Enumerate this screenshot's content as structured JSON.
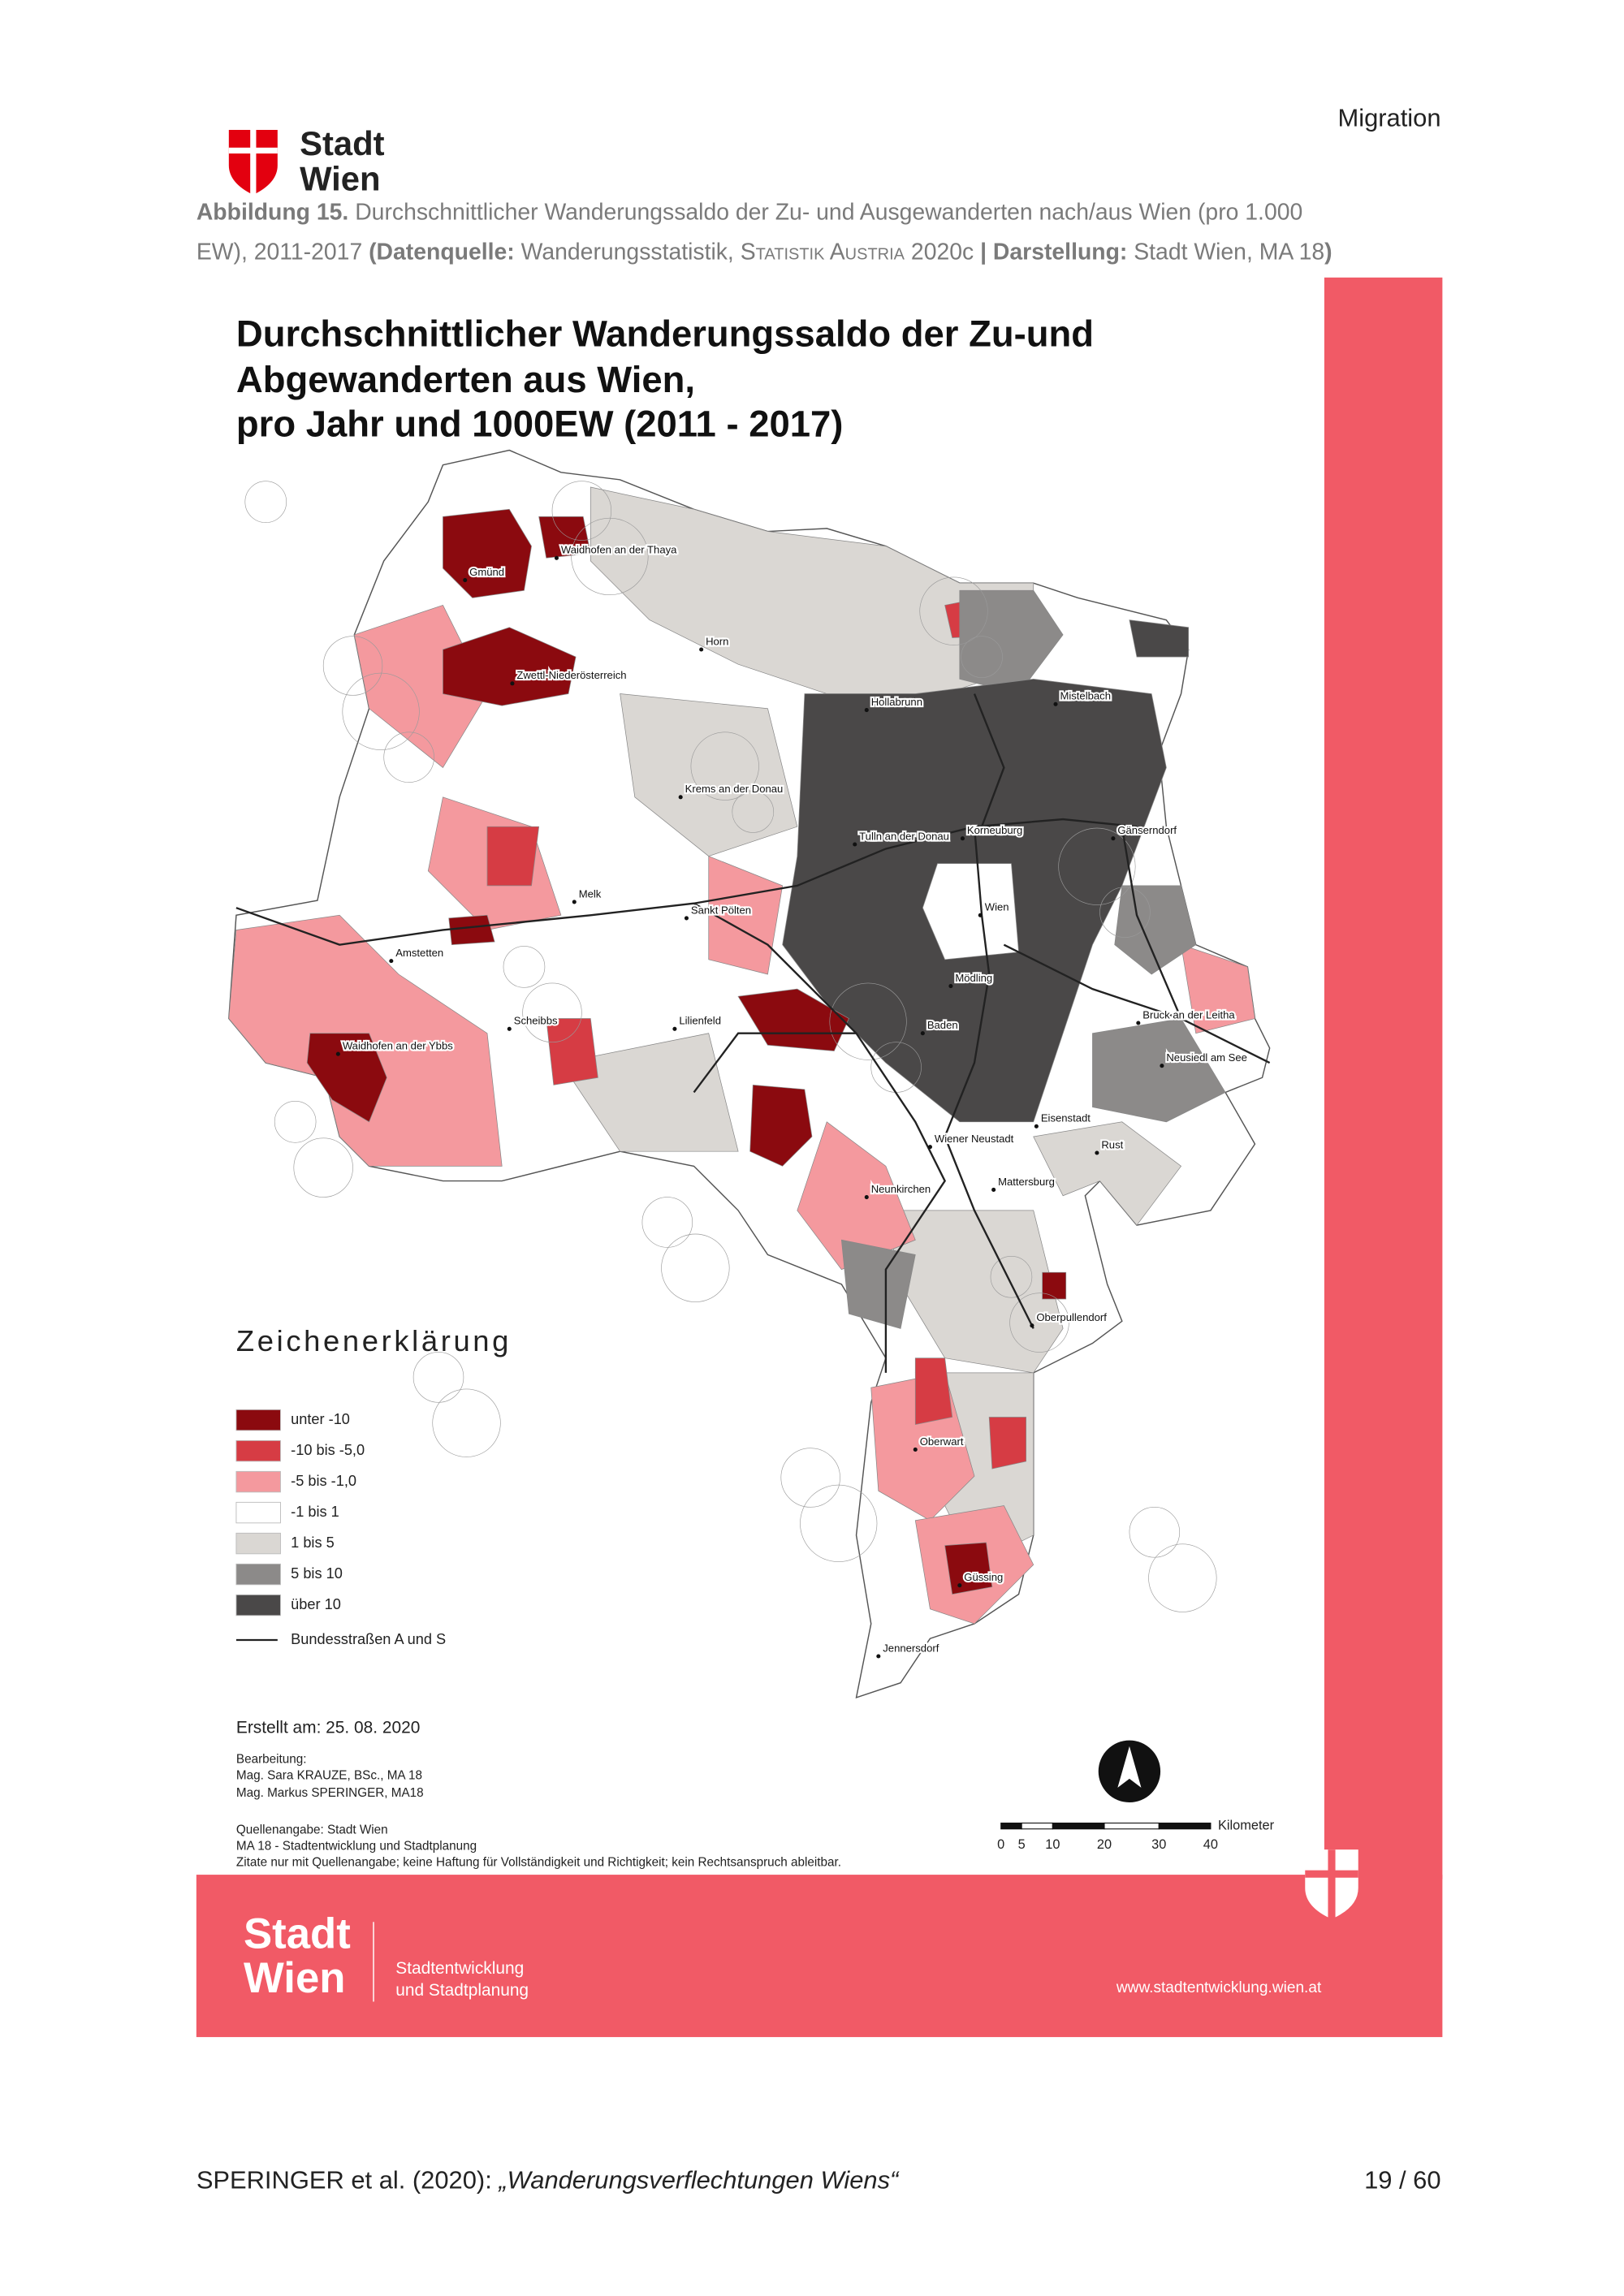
{
  "header": {
    "section": "Migration",
    "logo": [
      "Stadt",
      "Wien"
    ]
  },
  "caption": {
    "label": "Abbildung 15.",
    "text": "Durchschnittlicher Wanderungssaldo der Zu- und Ausgewanderten nach/aus Wien (pro 1.000",
    "text_continued": "EW), 2011-2017",
    "source_label": "(Datenquelle:",
    "source": "Wanderungsstatistik,",
    "source_org": "Statistik Austria",
    "source_year": "2020c",
    "credit_label": "| Darstellung:",
    "credit": "Stadt Wien, MA 18",
    "closing": ")"
  },
  "map": {
    "title": [
      "Durchschnittlicher Wanderungssaldo der Zu-und",
      "Abgewanderten aus Wien,",
      "pro Jahr und 1000EW (2011 - 2017)"
    ],
    "places": [
      "Gmünd",
      "Waidhofen an der Thaya",
      "Horn",
      "Zwettl-Niederösterreich",
      "Hollabrunn",
      "Mistelbach",
      "Krems an der Donau",
      "Tulln an der Donau",
      "Korneuburg",
      "Gänserndorf",
      "Melk",
      "Sankt Pölten",
      "Wien",
      "Amstetten",
      "Mödling",
      "Bruck an der Leitha",
      "Scheibbs",
      "Lilienfeld",
      "Baden",
      "Waidhofen an der Ybbs",
      "Neusiedl am See",
      "Eisenstadt",
      "Wiener Neustadt",
      "Rust",
      "Mattersburg",
      "Neunkirchen",
      "Oberpullendorf",
      "Oberwart",
      "Güssing",
      "Jennersdorf"
    ],
    "legend": {
      "title": "Zeichenerklärung",
      "items": [
        "unter -10",
        "-10 bis -5,0",
        "-5 bis -1,0",
        "-1 bis 1",
        "1 bis 5",
        "5 bis 10",
        "über 10"
      ],
      "roads": "Bundesstraßen A und S"
    },
    "created": "Erstellt am: 25. 08. 2020",
    "editing": [
      "Bearbeitung:",
      "Mag. Sara KRAUZE, BSc., MA 18",
      "Mag. Markus SPERINGER, MA18"
    ],
    "sources": [
      "Quellenangabe: Stadt Wien",
      "MA 18 - Stadtentwicklung und Stadtplanung",
      "Zitate nur mit Quellenangabe; keine Haftung für Vollständigkeit und Richtigkeit; kein Rechtsanspruch ableitbar."
    ],
    "scale": {
      "unit": "Kilometer",
      "labels": [
        "0",
        "5",
        "10",
        "20",
        "30",
        "40"
      ]
    }
  },
  "banner": {
    "logo": [
      "Stadt",
      "Wien"
    ],
    "department": [
      "Stadtentwicklung",
      "und Stadtplanung"
    ],
    "url": "www.stadtentwicklung.wien.at"
  },
  "footer": {
    "citation_author": "SPERINGER et al. (2020):",
    "citation_title": "„Wanderungsverflechtungen Wiens“",
    "page": "19 / 60"
  }
}
